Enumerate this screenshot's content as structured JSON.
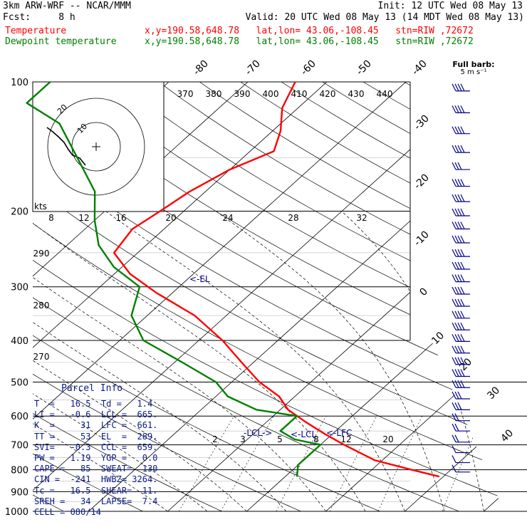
{
  "header": {
    "model": "3km ARW-WRF -- NCAR/MMM",
    "init": "Init: 12 UTC Wed 08 May 13",
    "fcst": "Fcst:     8 h",
    "valid": "Valid: 20 UTC Wed 08 May 13 (14 MDT Wed 08 May 13)",
    "temp_label": "Temperature",
    "temp_info": "x,y=190.58,648.78   lat,lon= 43.06,-108.45   stn=RIW ,72672",
    "dew_label": "Dewpoint temperature",
    "dew_info": "x,y=190.58,648.78   lat,lon= 43.06,-108.45   stn=RIW ,72672"
  },
  "colors": {
    "temperature": "#ff0000",
    "dewpoint": "#008000",
    "lines": "#000000",
    "hodograph": "#000000",
    "barbs": "#00008b"
  },
  "chart_data": {
    "type": "line",
    "skew_t": true,
    "pressure_levels": [
      100,
      200,
      300,
      400,
      500,
      600,
      700,
      800,
      900,
      1000
    ],
    "temperature_labels": [
      -80,
      -70,
      -60,
      -50,
      -40,
      -30,
      -20,
      -10,
      0,
      10,
      20,
      30,
      40
    ],
    "theta_labels": [
      370,
      380,
      390,
      400,
      410,
      420,
      430,
      440
    ],
    "mixing_ratio_labels": [
      2,
      3,
      5,
      8,
      12,
      20
    ],
    "theta_e_labels": [
      290,
      280,
      270
    ],
    "hodo_speed_labels": [
      8,
      12,
      16,
      20,
      24,
      28,
      32
    ],
    "hodo_unit": "kts",
    "hodo_rings": [
      10,
      20
    ],
    "barb_legend": "Full barb:\n5 m s⁻¹",
    "annotations": [
      "<-EL",
      "-LCL->",
      "<-LCL",
      "<-LFC"
    ],
    "series": [
      {
        "name": "Temperature",
        "points": [
          {
            "p": 830,
            "t": 19.5
          },
          {
            "p": 800,
            "t": 15
          },
          {
            "p": 760,
            "t": 9
          },
          {
            "p": 700,
            "t": 3
          },
          {
            "p": 660,
            "t": -1
          },
          {
            "p": 620,
            "t": -5
          },
          {
            "p": 580,
            "t": -9
          },
          {
            "p": 540,
            "t": -12
          },
          {
            "p": 500,
            "t": -16.5
          },
          {
            "p": 450,
            "t": -21.5
          },
          {
            "p": 400,
            "t": -27
          },
          {
            "p": 350,
            "t": -34
          },
          {
            "p": 310,
            "t": -42
          },
          {
            "p": 280,
            "t": -48
          },
          {
            "p": 250,
            "t": -53
          },
          {
            "p": 220,
            "t": -54
          },
          {
            "p": 200,
            "t": -53
          },
          {
            "p": 180,
            "t": -52
          },
          {
            "p": 160,
            "t": -50
          },
          {
            "p": 145,
            "t": -47
          },
          {
            "p": 130,
            "t": -49
          },
          {
            "p": 115,
            "t": -52
          },
          {
            "p": 100,
            "t": -54
          }
        ]
      },
      {
        "name": "Dewpoint temperature",
        "points": [
          {
            "p": 830,
            "t": 1.5
          },
          {
            "p": 780,
            "t": 0
          },
          {
            "p": 700,
            "t": 0
          },
          {
            "p": 680,
            "t": -4
          },
          {
            "p": 650,
            "t": -7
          },
          {
            "p": 600,
            "t": -7
          },
          {
            "p": 580,
            "t": -13
          },
          {
            "p": 540,
            "t": -18.5
          },
          {
            "p": 500,
            "t": -22
          },
          {
            "p": 450,
            "t": -29
          },
          {
            "p": 400,
            "t": -37
          },
          {
            "p": 350,
            "t": -42
          },
          {
            "p": 300,
            "t": -45
          },
          {
            "p": 270,
            "t": -51
          },
          {
            "p": 240,
            "t": -56
          },
          {
            "p": 210,
            "t": -60
          },
          {
            "p": 180,
            "t": -64
          },
          {
            "p": 150,
            "t": -71
          },
          {
            "p": 125,
            "t": -78
          },
          {
            "p": 112,
            "t": -85
          },
          {
            "p": 100,
            "t": -85
          }
        ]
      }
    ]
  },
  "parcel_info": {
    "title": "Parcel Info",
    "rows": [
      "T  =   16.5  Td =   1.4",
      "LI =   -0.6  LCL =  665.",
      "K  =     31  LFC =  661.",
      "TT =     53  EL  =  289.",
      "SVI=   -0.3  CCL =  659.",
      "PW =   1.19  YGP =   0.0",
      "CAPE =   85  SWEAT=  130",
      "CIN =  -241  HWBZ= 3264.",
      "Tc =   16.5  SHEAR=  11.",
      "SREH =   34  LAPSE=  7.4",
      "CELL = 080/14"
    ]
  },
  "wind_barbs": [
    {
      "p": 105,
      "dir": 270,
      "spd": 22
    },
    {
      "p": 118,
      "dir": 272,
      "spd": 22
    },
    {
      "p": 132,
      "dir": 270,
      "spd": 20
    },
    {
      "p": 146,
      "dir": 268,
      "spd": 18
    },
    {
      "p": 160,
      "dir": 270,
      "spd": 16
    },
    {
      "p": 175,
      "dir": 275,
      "spd": 20
    },
    {
      "p": 190,
      "dir": 270,
      "spd": 24
    },
    {
      "p": 205,
      "dir": 270,
      "spd": 24
    },
    {
      "p": 220,
      "dir": 270,
      "spd": 26
    },
    {
      "p": 237,
      "dir": 270,
      "spd": 28
    },
    {
      "p": 255,
      "dir": 270,
      "spd": 28
    },
    {
      "p": 273,
      "dir": 270,
      "spd": 28
    },
    {
      "p": 292,
      "dir": 270,
      "spd": 26
    },
    {
      "p": 312,
      "dir": 270,
      "spd": 26
    },
    {
      "p": 333,
      "dir": 270,
      "spd": 24
    },
    {
      "p": 355,
      "dir": 270,
      "spd": 24
    },
    {
      "p": 378,
      "dir": 270,
      "spd": 24
    },
    {
      "p": 402,
      "dir": 268,
      "spd": 22
    },
    {
      "p": 428,
      "dir": 268,
      "spd": 22
    },
    {
      "p": 455,
      "dir": 270,
      "spd": 20
    },
    {
      "p": 485,
      "dir": 270,
      "spd": 20
    },
    {
      "p": 515,
      "dir": 270,
      "spd": 18
    },
    {
      "p": 547,
      "dir": 270,
      "spd": 16
    },
    {
      "p": 580,
      "dir": 265,
      "spd": 14
    },
    {
      "p": 615,
      "dir": 265,
      "spd": 12
    },
    {
      "p": 650,
      "dir": 260,
      "spd": 10
    },
    {
      "p": 690,
      "dir": 255,
      "spd": 8
    },
    {
      "p": 730,
      "dir": 250,
      "spd": 6
    },
    {
      "p": 770,
      "dir": 240,
      "spd": 5
    },
    {
      "p": 810,
      "dir": 220,
      "spd": 4
    }
  ]
}
